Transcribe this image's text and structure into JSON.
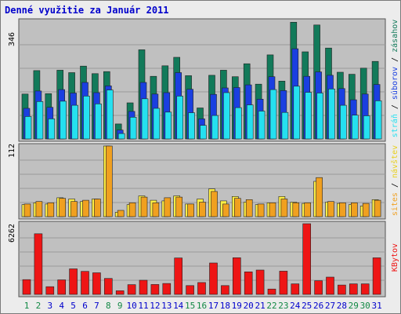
{
  "title": "Denné využitie za Január 2011",
  "colors": {
    "background": "#ececec",
    "plot_background": "#c0c0c0",
    "title": "#0000cc",
    "hits_top": "#127a5a",
    "files_mid": "#1a3fe0",
    "pages_front": "#25e0f0",
    "visits": "#f0a020",
    "sites": "#ffee44",
    "kbytes": "#ee1515",
    "weekend_label": "#118844",
    "weekday_label": "#0000cc"
  },
  "labels": {
    "top_axis_max": "346",
    "mid_axis_max": "112",
    "bot_axis_max": "6262",
    "legend_top": [
      "stráň",
      "súborov",
      "zásahov"
    ],
    "legend_mid": [
      "sites",
      "návštev"
    ],
    "legend_bot": "KBytov"
  },
  "chart_data": [
    {
      "type": "bar",
      "title": "Denné využitie za Január 2011",
      "categories": [
        "1",
        "2",
        "3",
        "4",
        "5",
        "6",
        "7",
        "8",
        "9",
        "10",
        "11",
        "12",
        "13",
        "14",
        "15",
        "16",
        "17",
        "18",
        "19",
        "20",
        "21",
        "22",
        "23",
        "24",
        "25",
        "26",
        "27",
        "28",
        "29",
        "30",
        "31"
      ],
      "weekend_days": [
        1,
        2,
        8,
        9,
        15,
        16,
        22,
        23,
        29,
        30
      ],
      "ylim": [
        0,
        346
      ],
      "series": [
        {
          "name": "zásahov",
          "values": [
            132,
            201,
            133,
            202,
            195,
            214,
            192,
            198,
            44,
            106,
            262,
            184,
            215,
            240,
            186,
            91,
            187,
            202,
            183,
            221,
            161,
            247,
            170,
            343,
            256,
            335,
            267,
            196,
            190,
            208,
            228
          ]
        },
        {
          "name": "súborov",
          "values": [
            90,
            141,
            93,
            145,
            135,
            166,
            136,
            156,
            26,
            81,
            166,
            132,
            136,
            195,
            146,
            59,
            131,
            150,
            151,
            159,
            117,
            183,
            142,
            265,
            184,
            197,
            187,
            148,
            115,
            132,
            160
          ]
        },
        {
          "name": "stráň",
          "values": [
            66,
            110,
            59,
            111,
            99,
            126,
            103,
            144,
            16,
            64,
            118,
            90,
            79,
            126,
            77,
            40,
            69,
            136,
            92,
            100,
            82,
            145,
            78,
            155,
            137,
            135,
            147,
            99,
            70,
            68,
            112
          ]
        }
      ]
    },
    {
      "type": "bar",
      "categories": [
        "1",
        "2",
        "3",
        "4",
        "5",
        "6",
        "7",
        "8",
        "9",
        "10",
        "11",
        "12",
        "13",
        "14",
        "15",
        "16",
        "17",
        "18",
        "19",
        "20",
        "21",
        "22",
        "23",
        "24",
        "25",
        "26",
        "27",
        "28",
        "29",
        "30",
        "31"
      ],
      "ylim": [
        0,
        112
      ],
      "series": [
        {
          "name": "návštev",
          "values": [
            20,
            24,
            22,
            29,
            24,
            26,
            28,
            112,
            10,
            22,
            31,
            22,
            30,
            31,
            20,
            23,
            40,
            20,
            29,
            27,
            20,
            22,
            28,
            22,
            22,
            62,
            24,
            22,
            22,
            21,
            26
          ]
        },
        {
          "name": "sites",
          "values": [
            19,
            22,
            20,
            30,
            28,
            24,
            28,
            112,
            7,
            19,
            33,
            26,
            25,
            33,
            20,
            28,
            44,
            25,
            32,
            23,
            19,
            22,
            32,
            23,
            21,
            56,
            23,
            21,
            19,
            17,
            27
          ]
        }
      ]
    },
    {
      "type": "bar",
      "categories": [
        "1",
        "2",
        "3",
        "4",
        "5",
        "6",
        "7",
        "8",
        "9",
        "10",
        "11",
        "12",
        "13",
        "14",
        "15",
        "16",
        "17",
        "18",
        "19",
        "20",
        "21",
        "22",
        "23",
        "24",
        "25",
        "26",
        "27",
        "28",
        "29",
        "30",
        "31"
      ],
      "ylim": [
        0,
        6262
      ],
      "series": [
        {
          "name": "KBytov",
          "values": [
            1310,
            5370,
            680,
            1290,
            2260,
            2040,
            1910,
            1410,
            320,
            860,
            1250,
            880,
            970,
            3230,
            780,
            1050,
            2780,
            780,
            3250,
            2000,
            2160,
            470,
            2060,
            930,
            6262,
            1210,
            1530,
            830,
            930,
            930,
            3240
          ]
        }
      ]
    }
  ]
}
